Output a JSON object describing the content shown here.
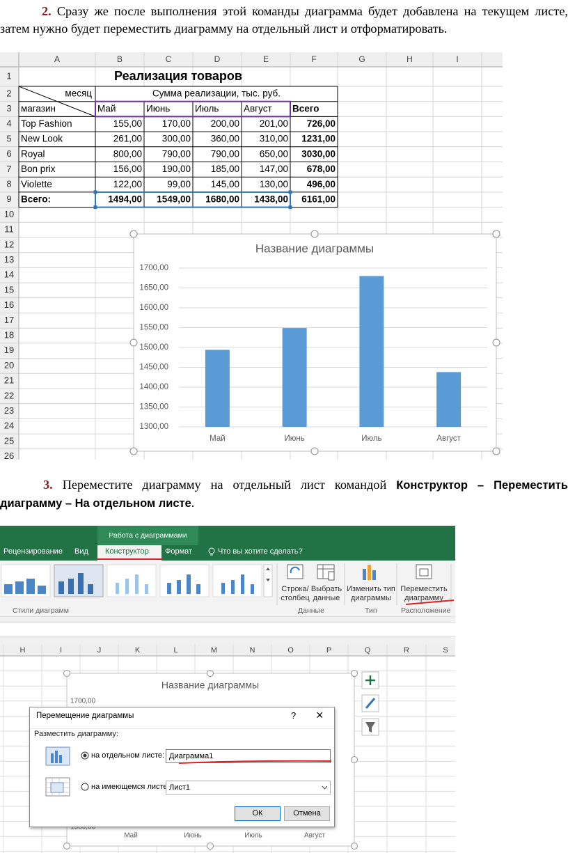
{
  "step2": {
    "number": "2.",
    "text": "Сразу же после выполнения этой команды диаграмма будет добавлена на текущем листе, затем нужно будет переместить диаграмму на отдельный лист и отформатировать."
  },
  "spreadsheet": {
    "columns": [
      "A",
      "B",
      "C",
      "D",
      "E",
      "F",
      "G",
      "H",
      "I"
    ],
    "row_numbers": [
      "1",
      "2",
      "3",
      "4",
      "5",
      "6",
      "7",
      "8",
      "9",
      "10",
      "11",
      "12",
      "13",
      "14",
      "15",
      "16",
      "17",
      "18",
      "19",
      "20",
      "21",
      "22",
      "23",
      "24",
      "25",
      "26"
    ],
    "title": "Реализация товаров",
    "header_month": "месяц",
    "header_sum": "Сумма реализации, тыс. руб.",
    "header_store": "магазин",
    "header_columns": [
      "Май",
      "Июнь",
      "Июль",
      "Август",
      "Всего"
    ],
    "table": [
      [
        "Top Fashion",
        "155,00",
        "170,00",
        "200,00",
        "201,00",
        "726,00"
      ],
      [
        "New Look",
        "261,00",
        "300,00",
        "360,00",
        "310,00",
        "1231,00"
      ],
      [
        "Royal",
        "800,00",
        "790,00",
        "790,00",
        "650,00",
        "3030,00"
      ],
      [
        "Bon prix",
        "156,00",
        "190,00",
        "185,00",
        "147,00",
        "678,00"
      ],
      [
        "Violette",
        "122,00",
        "99,00",
        "145,00",
        "130,00",
        "496,00"
      ],
      [
        "Всего:",
        "1494,00",
        "1549,00",
        "1680,00",
        "1438,00",
        "6161,00"
      ]
    ]
  },
  "chart_data": {
    "type": "bar",
    "title": "Название диаграммы",
    "categories": [
      "Май",
      "Июнь",
      "Июль",
      "Август"
    ],
    "values": [
      1494,
      1549,
      1680,
      1438
    ],
    "color": "#5b9bd5",
    "ylim": [
      1300,
      1700
    ],
    "yticks": [
      {
        "value": 1300,
        "label": "1300,00"
      },
      {
        "value": 1350,
        "label": "1350,00"
      },
      {
        "value": 1400,
        "label": "1400,00"
      },
      {
        "value": 1450,
        "label": "1450,00"
      },
      {
        "value": 1500,
        "label": "1500,00"
      },
      {
        "value": 1550,
        "label": "1550,00"
      },
      {
        "value": 1600,
        "label": "1600,00"
      },
      {
        "value": 1650,
        "label": "1650,00"
      },
      {
        "value": 1700,
        "label": "1700,00"
      }
    ],
    "grid": true
  },
  "step3": {
    "number": "3.",
    "text": "Переместите диаграмму на отдельный лист командой",
    "command": "Конструктор – Переместить диаграмму – На отдельном листе",
    "end": "."
  },
  "ribbon": {
    "context_group": "Работа с диаграммами",
    "tabs": [
      "Рецензирование",
      "Вид",
      "Конструктор",
      "Формат"
    ],
    "search": "Что вы хотите сделать?",
    "buttons": [
      {
        "line1": "Строка/",
        "line2": "столбец"
      },
      {
        "line1": "Выбрать",
        "line2": "данные"
      },
      {
        "line1": "Изменить тип",
        "line2": "диаграммы"
      },
      {
        "line1": "Переместить",
        "line2": "диаграмму"
      }
    ],
    "groups": [
      "Стили диаграмм",
      "Данные",
      "Тип",
      "Расположение"
    ]
  },
  "second_sheet": {
    "columns": [
      "H",
      "I",
      "J",
      "K",
      "L",
      "M",
      "N",
      "O",
      "P",
      "Q",
      "R",
      "S"
    ],
    "chart_title": "Название диаграммы",
    "ytick_top": "1700,00",
    "ytick_bottom": "1300,00",
    "categories": [
      "Май",
      "Июнь",
      "Июль",
      "Август"
    ]
  },
  "dialog": {
    "title": "Перемещение диаграммы",
    "help": "?",
    "close": "×",
    "prompt": "Разместить диаграмму:",
    "option1": "на отдельном листе:",
    "option1_value": "Диаграмма1",
    "option2": "на имеющемся листе:",
    "option2_value": "Лист1",
    "ok": "ОК",
    "cancel": "Отмена"
  }
}
